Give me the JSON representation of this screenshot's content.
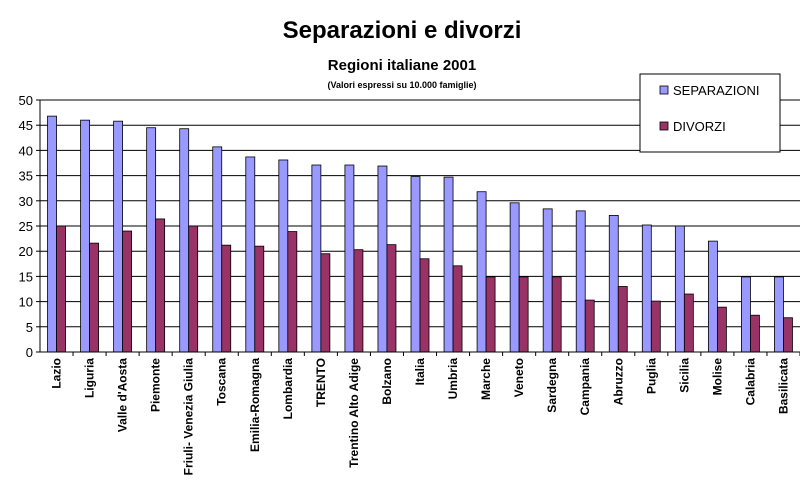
{
  "chart_data": {
    "type": "bar",
    "title": "Separazioni e divorzi",
    "subtitle": "Regioni italiane 2001",
    "note": "(Valori espressi su 10.000 famiglie)",
    "categories": [
      "Lazio",
      "Liguria",
      "Valle d'Aosta",
      "Piemonte",
      "Friuli- Venezia Giulia",
      "Toscana",
      "Emilia-Romagna",
      "Lombardia",
      "TRENTO",
      "Trentino Alto Adige",
      "Bolzano",
      "Italia",
      "Umbria",
      "Marche",
      "Veneto",
      "Sardegna",
      "Campania",
      "Abruzzo",
      "Puglia",
      "Sicilia",
      "Molise",
      "Calabria",
      "Basilicata"
    ],
    "series": [
      {
        "name": "SEPARAZIONI",
        "color": "#9999ff",
        "values": [
          46.8,
          46.0,
          45.8,
          44.5,
          44.3,
          40.7,
          38.7,
          38.1,
          37.1,
          37.1,
          36.9,
          34.8,
          34.7,
          31.8,
          29.6,
          28.4,
          28.0,
          27.1,
          25.2,
          25.0,
          22.0,
          14.9,
          14.9
        ]
      },
      {
        "name": "DIVORZI",
        "color": "#993366",
        "values": [
          25.0,
          21.6,
          24.0,
          26.4,
          25.0,
          21.2,
          21.0,
          23.9,
          19.5,
          20.3,
          21.3,
          18.5,
          17.1,
          14.9,
          14.9,
          14.9,
          10.3,
          13.0,
          10.1,
          11.5,
          8.9,
          7.3,
          6.8
        ]
      }
    ],
    "ylim": [
      0,
      50
    ],
    "yticks": [
      "0",
      "5",
      "10",
      "15",
      "20",
      "25",
      "30",
      "35",
      "40",
      "45",
      "50"
    ],
    "grid": true,
    "legend_position": "top-right"
  }
}
